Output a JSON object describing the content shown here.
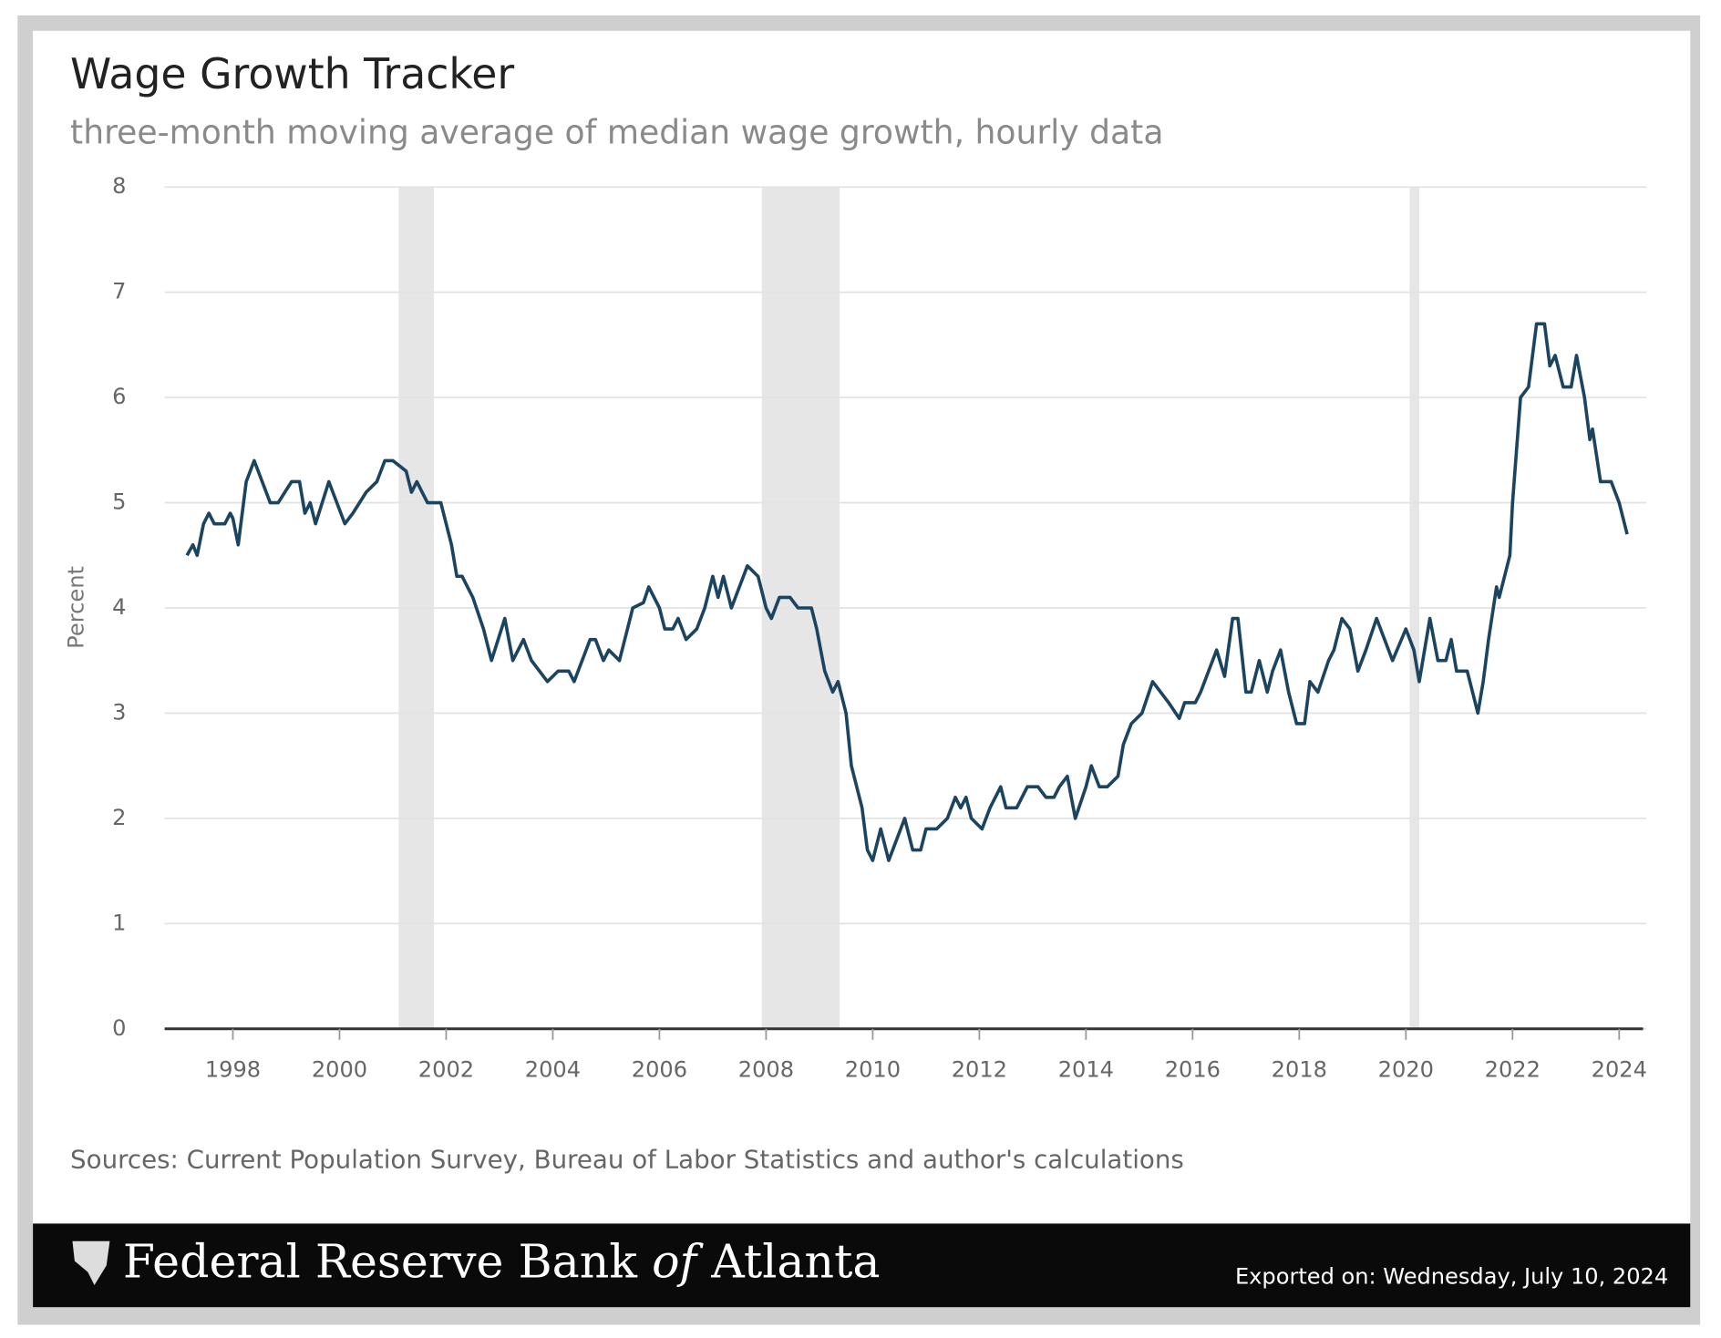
{
  "chart_data": {
    "type": "line",
    "title": "Wage Growth Tracker",
    "subtitle": "three-month moving average of median wage growth, hourly data",
    "ylabel": "Percent",
    "xlim": [
      1996.72,
      2024.51
    ],
    "ylim": [
      0,
      8
    ],
    "xticks": [
      1998,
      2000,
      2002,
      2004,
      2006,
      2008,
      2010,
      2012,
      2014,
      2016,
      2018,
      2020,
      2022,
      2024
    ],
    "yticks": [
      0,
      1,
      2,
      3,
      4,
      5,
      6,
      7,
      8
    ],
    "grid": true,
    "shaded_ranges": [
      [
        2001.11,
        2001.77
      ],
      [
        2007.92,
        2009.38
      ],
      [
        2020.07,
        2020.25
      ]
    ],
    "shade_color": "#e6e6e6",
    "x": [
      1997.14,
      1997.25,
      1997.33,
      1997.45,
      1997.55,
      1997.65,
      1997.85,
      1997.95,
      1998.0,
      1998.1,
      1998.25,
      1998.4,
      1998.55,
      1998.7,
      1998.85,
      1999.1,
      1999.25,
      1999.35,
      1999.45,
      1999.55,
      1999.8,
      2000.1,
      2000.25,
      2000.5,
      2000.7,
      2000.85,
      2001.0,
      2001.25,
      2001.35,
      2001.45,
      2001.55,
      2001.65,
      2001.9,
      2002.1,
      2002.2,
      2002.3,
      2002.5,
      2002.7,
      2002.85,
      2003.1,
      2003.25,
      2003.45,
      2003.6,
      2003.75,
      2003.9,
      2004.1,
      2004.3,
      2004.4,
      2004.55,
      2004.7,
      2004.8,
      2004.95,
      2005.05,
      2005.25,
      2005.35,
      2005.5,
      2005.7,
      2005.8,
      2006.0,
      2006.1,
      2006.25,
      2006.35,
      2006.5,
      2006.7,
      2006.85,
      2007.0,
      2007.1,
      2007.2,
      2007.35,
      2007.5,
      2007.65,
      2007.85,
      2008.0,
      2008.1,
      2008.25,
      2008.45,
      2008.6,
      2008.85,
      2008.95,
      2009.1,
      2009.25,
      2009.35,
      2009.5,
      2009.6,
      2009.8,
      2009.9,
      2010.0,
      2010.15,
      2010.3,
      2010.45,
      2010.6,
      2010.75,
      2010.9,
      2011.0,
      2011.2,
      2011.4,
      2011.55,
      2011.65,
      2011.75,
      2011.85,
      2012.05,
      2012.2,
      2012.3,
      2012.4,
      2012.5,
      2012.7,
      2012.9,
      2013.1,
      2013.25,
      2013.4,
      2013.5,
      2013.65,
      2013.8,
      2014.0,
      2014.1,
      2014.25,
      2014.4,
      2014.6,
      2014.7,
      2014.85,
      2015.05,
      2015.25,
      2015.4,
      2015.55,
      2015.75,
      2015.85,
      2016.05,
      2016.15,
      2016.3,
      2016.45,
      2016.6,
      2016.75,
      2016.85,
      2017.0,
      2017.1,
      2017.25,
      2017.4,
      2017.5,
      2017.65,
      2017.8,
      2017.95,
      2018.1,
      2018.2,
      2018.35,
      2018.55,
      2018.65,
      2018.8,
      2018.95,
      2019.1,
      2019.25,
      2019.45,
      2019.6,
      2019.75,
      2020.0,
      2020.15,
      2020.25,
      2020.45,
      2020.6,
      2020.75,
      2020.85,
      2020.95,
      2021.15,
      2021.35,
      2021.45,
      2021.55,
      2021.7,
      2021.75,
      2021.95,
      2022.0,
      2022.15,
      2022.3,
      2022.45,
      2022.6,
      2022.7,
      2022.8,
      2022.95,
      2023.1,
      2023.2,
      2023.35,
      2023.45,
      2023.5,
      2023.65,
      2023.85,
      2024.0,
      2024.15
    ],
    "series": [
      {
        "name": "Wage growth",
        "color": "#1b4460",
        "values": [
          4.5,
          4.6,
          4.5,
          4.8,
          4.9,
          4.8,
          4.8,
          4.9,
          4.85,
          4.6,
          5.2,
          5.4,
          5.2,
          5.0,
          5.0,
          5.2,
          5.2,
          4.9,
          5.0,
          4.8,
          5.2,
          4.8,
          4.9,
          5.1,
          5.2,
          5.4,
          5.4,
          5.3,
          5.1,
          5.2,
          5.1,
          5.0,
          5.0,
          4.6,
          4.3,
          4.3,
          4.1,
          3.8,
          3.5,
          3.9,
          3.5,
          3.7,
          3.5,
          3.4,
          3.3,
          3.4,
          3.4,
          3.3,
          3.5,
          3.7,
          3.7,
          3.5,
          3.6,
          3.5,
          3.7,
          4.0,
          4.05,
          4.2,
          4.0,
          3.8,
          3.8,
          3.9,
          3.7,
          3.8,
          4.0,
          4.3,
          4.1,
          4.3,
          4.0,
          4.2,
          4.4,
          4.3,
          4.0,
          3.9,
          4.1,
          4.1,
          4.0,
          4.0,
          3.8,
          3.4,
          3.2,
          3.3,
          3.0,
          2.5,
          2.1,
          1.7,
          1.6,
          1.9,
          1.6,
          1.8,
          2.0,
          1.7,
          1.7,
          1.9,
          1.9,
          2.0,
          2.2,
          2.1,
          2.2,
          2.0,
          1.9,
          2.1,
          2.2,
          2.3,
          2.1,
          2.1,
          2.3,
          2.3,
          2.2,
          2.2,
          2.3,
          2.4,
          2.0,
          2.3,
          2.5,
          2.3,
          2.3,
          2.4,
          2.7,
          2.9,
          3.0,
          3.3,
          3.2,
          3.1,
          2.95,
          3.1,
          3.1,
          3.2,
          3.4,
          3.6,
          3.35,
          3.9,
          3.9,
          3.2,
          3.2,
          3.5,
          3.2,
          3.4,
          3.6,
          3.2,
          2.9,
          2.9,
          3.3,
          3.2,
          3.5,
          3.6,
          3.9,
          3.8,
          3.4,
          3.6,
          3.9,
          3.7,
          3.5,
          3.8,
          3.6,
          3.3,
          3.9,
          3.5,
          3.5,
          3.7,
          3.4,
          3.4,
          3.0,
          3.3,
          3.7,
          4.2,
          4.1,
          4.5,
          5.0,
          6.0,
          6.1,
          6.7,
          6.7,
          6.3,
          6.4,
          6.1,
          6.1,
          6.4,
          6.0,
          5.6,
          5.7,
          5.2,
          5.2,
          5.0,
          4.7
        ]
      }
    ]
  },
  "source": "Sources: Current Population Survey, Bureau of Labor Statistics and author's calculations",
  "footer": {
    "brand": [
      "Federal Reserve Bank",
      "of",
      "Atlanta"
    ],
    "exported": "Exported on: Wednesday, July 10, 2024"
  }
}
